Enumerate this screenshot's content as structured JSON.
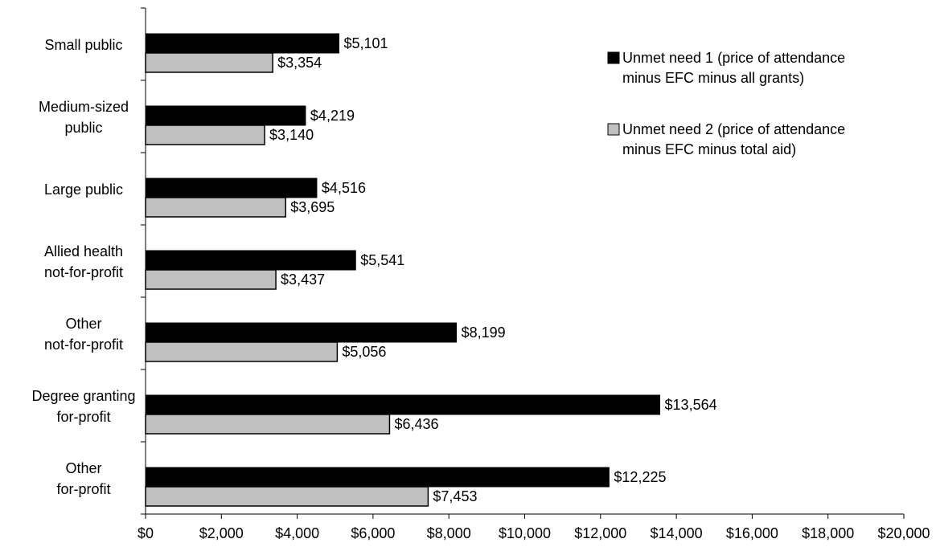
{
  "chart_data": {
    "type": "bar",
    "orientation": "horizontal",
    "categories": [
      [
        "Small public"
      ],
      [
        "Medium-sized",
        "public"
      ],
      [
        "Large public"
      ],
      [
        "Allied health",
        "not-for-profit"
      ],
      [
        "Other",
        "not-for-profit"
      ],
      [
        "Degree granting",
        "for-profit"
      ],
      [
        "Other",
        "for-profit"
      ]
    ],
    "series": [
      {
        "name_lines": [
          "Unmet need 1 (price of attendance",
          "minus EFC minus all grants)"
        ],
        "color": "#000000",
        "values": [
          5101,
          4219,
          4516,
          5541,
          8199,
          13564,
          12225
        ],
        "labels": [
          "$5,101",
          "$4,219",
          "$4,516",
          "$5,541",
          "$8,199",
          "$13,564",
          "$12,225"
        ]
      },
      {
        "name_lines": [
          "Unmet need 2 (price of attendance",
          "minus EFC minus total aid)"
        ],
        "color": "#c0c0c0",
        "values": [
          3354,
          3140,
          3695,
          3437,
          5056,
          6436,
          7453
        ],
        "labels": [
          "$3,354",
          "$3,140",
          "$3,695",
          "$3,437",
          "$5,056",
          "$6,436",
          "$7,453"
        ]
      }
    ],
    "xlim": [
      0,
      20000
    ],
    "x_ticks": [
      0,
      2000,
      4000,
      6000,
      8000,
      10000,
      12000,
      14000,
      16000,
      18000,
      20000
    ],
    "x_tick_labels": [
      "$0",
      "$2,000",
      "$4,000",
      "$6,000",
      "$8,000",
      "$10,000",
      "$12,000",
      "$14,000",
      "$16,000",
      "$18,000",
      "$20,000"
    ],
    "title": "",
    "xlabel": "",
    "ylabel": "",
    "grid": false,
    "legend_position": "top-right"
  }
}
